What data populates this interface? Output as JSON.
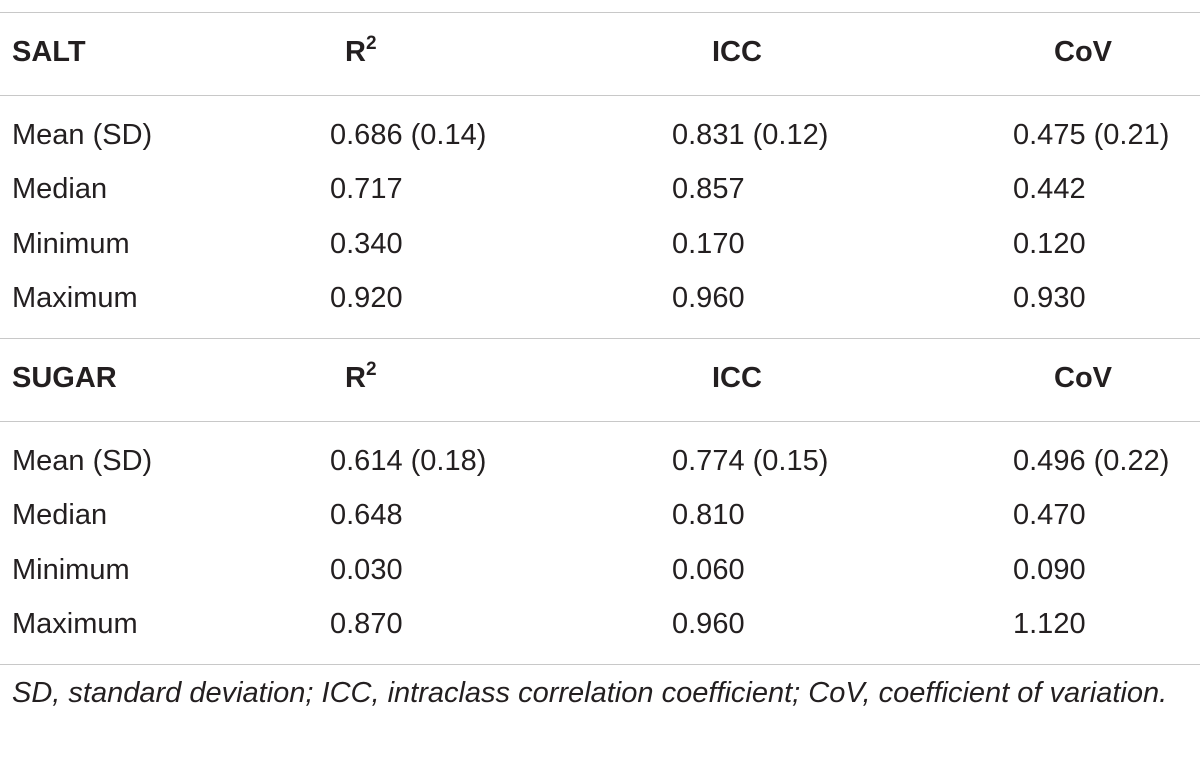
{
  "table": {
    "sections": [
      {
        "title": "SALT",
        "columns": [
          {
            "text": "R",
            "sup": "2"
          },
          {
            "text": "ICC"
          },
          {
            "text": "CoV"
          }
        ],
        "rows": [
          [
            "Mean (SD)",
            "0.686 (0.14)",
            "0.831 (0.12)",
            "0.475 (0.21)"
          ],
          [
            "Median",
            "0.717",
            "0.857",
            "0.442"
          ],
          [
            "Minimum",
            "0.340",
            "0.170",
            "0.120"
          ],
          [
            "Maximum",
            "0.920",
            "0.960",
            "0.930"
          ]
        ]
      },
      {
        "title": "SUGAR",
        "columns": [
          {
            "text": "R",
            "sup": "2"
          },
          {
            "text": "ICC"
          },
          {
            "text": "CoV"
          }
        ],
        "rows": [
          [
            "Mean (SD)",
            "0.614 (0.18)",
            "0.774 (0.15)",
            "0.496 (0.22)"
          ],
          [
            "Median",
            "0.648",
            "0.810",
            "0.470"
          ],
          [
            "Minimum",
            "0.030",
            "0.060",
            "0.090"
          ],
          [
            "Maximum",
            "0.870",
            "0.960",
            "1.120"
          ]
        ]
      }
    ],
    "footnote": "SD, standard deviation; ICC, intraclass correlation coefficient; CoV, coefficient of variation."
  }
}
